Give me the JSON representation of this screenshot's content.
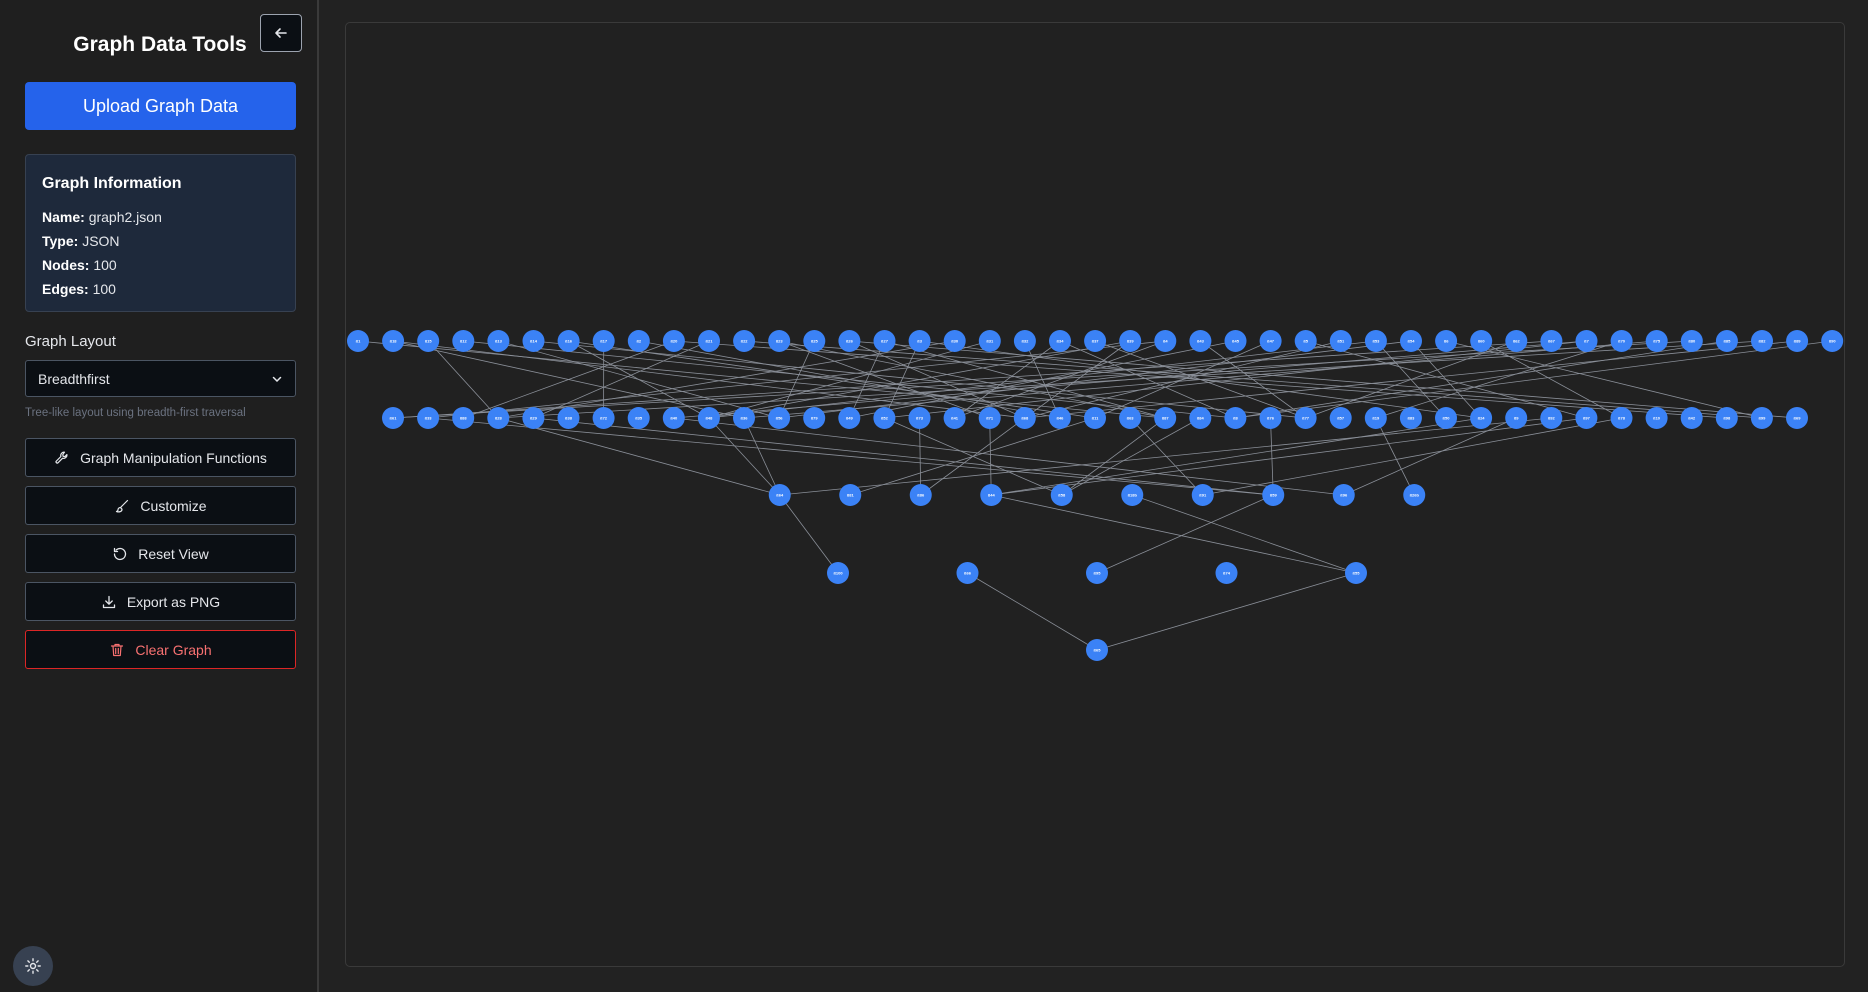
{
  "sidebar": {
    "title": "Graph Data Tools",
    "upload_label": "Upload Graph Data",
    "info": {
      "title": "Graph Information",
      "rows": [
        {
          "key": "Name:",
          "value": "graph2.json"
        },
        {
          "key": "Type:",
          "value": "JSON"
        },
        {
          "key": "Nodes:",
          "value": "100"
        },
        {
          "key": "Edges:",
          "value": "100"
        }
      ]
    },
    "layout_label": "Graph Layout",
    "layout_value": "Breadthfirst",
    "layout_hint": "Tree-like layout using breadth-first traversal",
    "buttons": {
      "manipulation": "Graph Manipulation Functions",
      "customize": "Customize",
      "reset": "Reset View",
      "export": "Export as PNG",
      "clear": "Clear Graph"
    }
  },
  "colors": {
    "accent": "#2563eb",
    "node": "#3b82f6",
    "edge": "#8a8f98",
    "danger": "#dc2626",
    "background": "#222222"
  },
  "icons": {
    "collapse": "arrow-left-icon",
    "manipulation": "wrench-icon",
    "customize": "brush-icon",
    "reset": "rotate-ccw-icon",
    "export": "download-icon",
    "clear": "trash-icon",
    "settings": "gear-icon",
    "select": "chevron-down-icon"
  },
  "graph": {
    "levels": [
      [
        "ß1",
        "ß18",
        "ß15",
        "ß12",
        "ß13",
        "ß14",
        "ß16",
        "ß17",
        "ß2",
        "ß20",
        "ß21",
        "ß22",
        "ß23",
        "ß25",
        "ß26",
        "ß27",
        "ß3",
        "ß30",
        "ß31",
        "ß32",
        "ß34",
        "ß37",
        "ß39",
        "ß4",
        "ß43",
        "ß45",
        "ß47",
        "ß5",
        "ß51",
        "ß53",
        "ß54",
        "ß6",
        "ß60",
        "ß62",
        "ß67",
        "ß7",
        "ß70",
        "ß75",
        "ß80",
        "ß85",
        "ß82",
        "ß89",
        "ß90"
      ],
      [
        "ß61",
        "ß33",
        "ß88",
        "ß28",
        "ß29",
        "ß38",
        "ß72",
        "ß35",
        "ß40",
        "ß48",
        "ß36",
        "ß56",
        "ß79",
        "ß49",
        "ß52",
        "ß73",
        "ß41",
        "ß71",
        "ß68",
        "ß46",
        "ß11",
        "ß63",
        "ß87",
        "ß84",
        "ß8",
        "ß76",
        "ß77",
        "ß57",
        "ß19",
        "ß83",
        "ß50",
        "ß24",
        "ß9",
        "ß92",
        "ß97",
        "ß78",
        "ß10",
        "ß42",
        "ß98",
        "ß99",
        "ß69"
      ],
      [
        "ß64",
        "ß81",
        "ß86",
        "ß44",
        "ß58",
        "ß18b",
        "ß91",
        "ß59",
        "ß96",
        "ß26b"
      ],
      [
        "ß100",
        "ß66",
        "ß95",
        "ß74",
        "ß55"
      ],
      [
        "ß65"
      ]
    ]
  }
}
